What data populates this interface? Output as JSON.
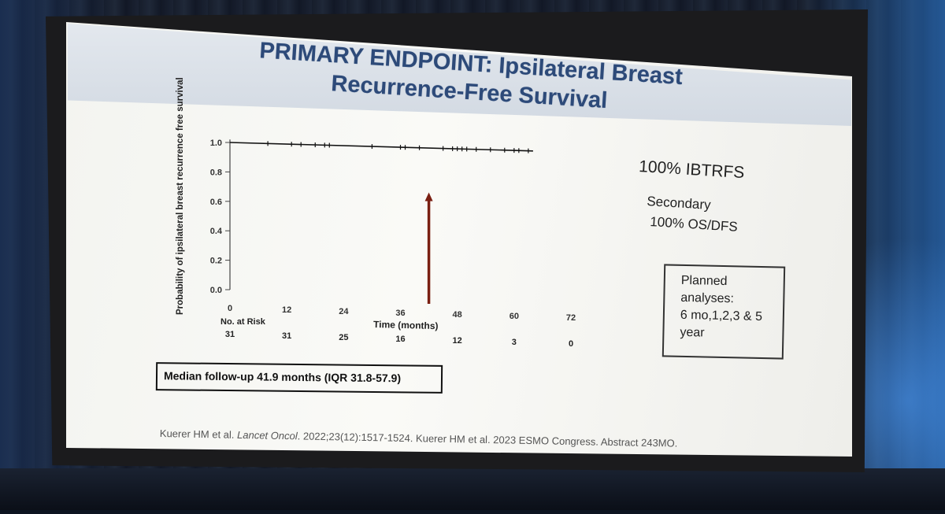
{
  "slide": {
    "title_line1": "PRIMARY ENDPOINT: Ipsilateral Breast",
    "title_line2": "Recurrence-Free Survival",
    "result_main": "100% IBTRFS",
    "secondary_label": "Secondary",
    "secondary_value": "100% OS/DFS",
    "planned_title": "Planned",
    "planned_line2": "analyses:",
    "planned_line3": "6 mo,1,2,3 & 5",
    "planned_line4": "year",
    "median_followup": "Median follow-up 41.9 months (IQR 31.8-57.9)",
    "citation_part1": "Kuerer HM et al. ",
    "citation_journal": "Lancet Oncol",
    "citation_part2": ". 2022;23(12):1517-1524.  Kuerer HM et al. 2023 ESMO Congress. Abstract 243MO.",
    "number_at_risk_label": "No. at Risk",
    "number_at_risk": [
      "31",
      "31",
      "25",
      "16",
      "12",
      "3",
      "0"
    ]
  },
  "chart_data": {
    "type": "line",
    "title": "",
    "xlabel": "Time (months)",
    "ylabel": "Probability of ipsilateral breast recurrence free survival",
    "x_ticks": [
      0,
      12,
      24,
      36,
      48,
      60,
      72
    ],
    "y_ticks": [
      "0.0",
      "0.2",
      "0.4",
      "0.6",
      "0.8",
      "1.0"
    ],
    "xlim": [
      0,
      72
    ],
    "ylim": [
      0,
      1
    ],
    "series": [
      {
        "name": "IBTRFS",
        "x": [
          0,
          64
        ],
        "y": [
          1.0,
          1.0
        ]
      }
    ],
    "censor_marks": [
      8,
      13,
      15,
      18,
      20,
      21,
      30,
      36,
      37,
      40,
      45,
      47,
      48,
      49,
      50,
      52,
      55,
      58,
      60,
      61,
      63
    ],
    "annotation_arrow_x_months": 42,
    "annotation_arrow_top": 0.65,
    "colors": {
      "line": "#111111",
      "arrow": "#7a1f12",
      "title": "#2d4a79"
    }
  }
}
